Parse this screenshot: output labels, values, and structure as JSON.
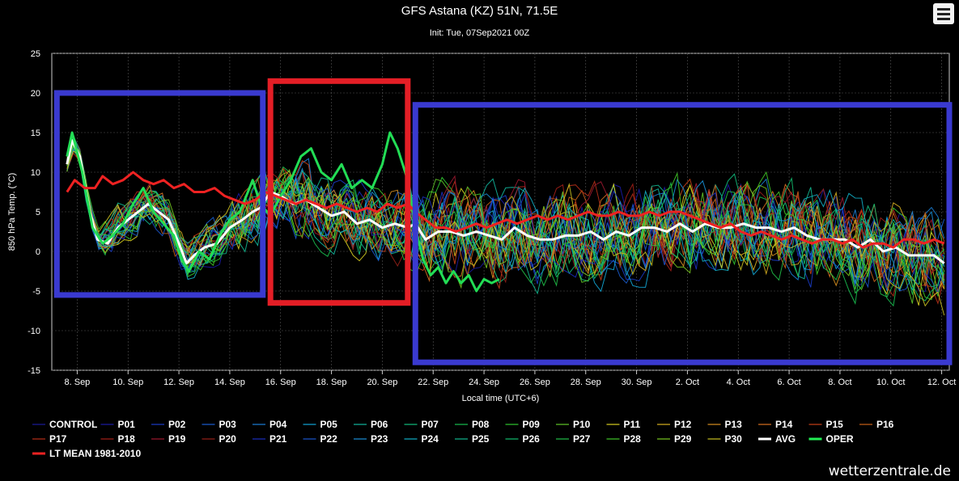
{
  "header": {
    "title": "GFS Astana (KZ) 51N, 71.5E",
    "subtitle": "Init: Tue, 07Sep2021 00Z"
  },
  "credit": "wetterzentrale.de",
  "colors": {
    "avg": "#ffffff",
    "oper": "#22dd55",
    "lt_mean": "#ee2222",
    "box_blue": "#3a3ad0",
    "box_red": "#e41e26"
  },
  "chart_data": {
    "type": "line",
    "title": "GFS Astana (KZ) 51N, 71.5E",
    "subtitle": "Init: Tue, 07Sep2021 00Z",
    "xlabel": "Local time (UTC+6)",
    "ylabel": "850 hPa Temp. (°C)",
    "ylim": [
      -15,
      25
    ],
    "yticks": [
      25,
      20,
      15,
      10,
      5,
      0,
      -5,
      -10,
      -15
    ],
    "xlim_days": "7 Sep – 12 Oct",
    "xticks": [
      "8. Sep",
      "10. Sep",
      "12. Sep",
      "14. Sep",
      "16. Sep",
      "18. Sep",
      "20. Sep",
      "22. Sep",
      "24. Sep",
      "26. Sep",
      "28. Sep",
      "30. Sep",
      "2. Oct",
      "4. Oct",
      "6. Oct",
      "8. Oct",
      "10. Oct",
      "12. Oct"
    ],
    "grid": true,
    "legend_position": "bottom",
    "series": [
      {
        "name": "AVG",
        "color": "#ffffff",
        "points": [
          [
            0.6,
            11
          ],
          [
            0.8,
            14
          ],
          [
            1.1,
            12
          ],
          [
            1.5,
            5
          ],
          [
            1.8,
            1.5
          ],
          [
            2.2,
            1
          ],
          [
            2.6,
            3
          ],
          [
            3.0,
            4
          ],
          [
            3.4,
            5
          ],
          [
            3.8,
            6
          ],
          [
            4.2,
            5
          ],
          [
            4.6,
            4
          ],
          [
            5.0,
            1
          ],
          [
            5.3,
            -1.5
          ],
          [
            5.6,
            -0.5
          ],
          [
            6.0,
            0.5
          ],
          [
            6.5,
            1
          ],
          [
            7.0,
            3
          ],
          [
            7.5,
            4
          ],
          [
            7.9,
            5
          ],
          [
            8.2,
            5.5
          ],
          [
            8.6,
            7.5
          ],
          [
            9.0,
            7
          ],
          [
            9.5,
            6
          ],
          [
            10.0,
            6.5
          ],
          [
            10.5,
            5.5
          ],
          [
            11.0,
            4.5
          ],
          [
            11.5,
            5
          ],
          [
            12.0,
            3.5
          ],
          [
            12.5,
            4
          ],
          [
            13.0,
            3
          ],
          [
            13.5,
            3.5
          ],
          [
            14.0,
            3
          ],
          [
            14.3,
            3.5
          ],
          [
            14.7,
            1.5
          ],
          [
            15.2,
            2.5
          ],
          [
            15.7,
            2.5
          ],
          [
            16.2,
            2
          ],
          [
            16.7,
            2.5
          ],
          [
            17.2,
            2
          ],
          [
            17.7,
            1.5
          ],
          [
            18.2,
            3
          ],
          [
            18.7,
            2
          ],
          [
            19.2,
            1.5
          ],
          [
            19.7,
            1.5
          ],
          [
            20.2,
            2
          ],
          [
            20.7,
            2
          ],
          [
            21.2,
            2.5
          ],
          [
            21.7,
            1.5
          ],
          [
            22.2,
            2.5
          ],
          [
            22.7,
            2
          ],
          [
            23.2,
            3
          ],
          [
            23.7,
            3
          ],
          [
            24.2,
            2.5
          ],
          [
            24.7,
            3.5
          ],
          [
            25.2,
            2.5
          ],
          [
            25.7,
            3.5
          ],
          [
            26.2,
            3
          ],
          [
            26.7,
            3
          ],
          [
            27.2,
            3.5
          ],
          [
            27.7,
            3
          ],
          [
            28.2,
            3
          ],
          [
            28.7,
            2.5
          ],
          [
            29.2,
            3
          ],
          [
            29.7,
            2
          ],
          [
            30.2,
            1.5
          ],
          [
            30.7,
            1.5
          ],
          [
            31.2,
            1.5
          ],
          [
            31.7,
            0.5
          ],
          [
            32.2,
            1.5
          ],
          [
            32.7,
            0
          ],
          [
            33.2,
            0.5
          ],
          [
            33.7,
            -0.5
          ],
          [
            34.2,
            -0.5
          ],
          [
            34.7,
            -0.5
          ],
          [
            35.1,
            -1.5
          ]
        ]
      },
      {
        "name": "OPER",
        "color": "#22dd55",
        "points": [
          [
            0.6,
            12
          ],
          [
            0.8,
            15
          ],
          [
            1.2,
            10
          ],
          [
            1.6,
            3
          ],
          [
            2.0,
            1
          ],
          [
            2.4,
            2
          ],
          [
            2.8,
            3.5
          ],
          [
            3.2,
            6
          ],
          [
            3.6,
            8
          ],
          [
            4.0,
            5
          ],
          [
            4.4,
            3.5
          ],
          [
            4.8,
            2
          ],
          [
            5.1,
            -1
          ],
          [
            5.4,
            -2.5
          ],
          [
            5.8,
            0
          ],
          [
            6.2,
            -1
          ],
          [
            6.6,
            2
          ],
          [
            7.0,
            4
          ],
          [
            7.4,
            5
          ],
          [
            7.9,
            9
          ],
          [
            8.2,
            6
          ],
          [
            8.6,
            4.5
          ],
          [
            9.0,
            7
          ],
          [
            9.4,
            9
          ],
          [
            9.8,
            12
          ],
          [
            10.2,
            13
          ],
          [
            10.6,
            10
          ],
          [
            11.0,
            9
          ],
          [
            11.4,
            11
          ],
          [
            11.8,
            8
          ],
          [
            12.2,
            9
          ],
          [
            12.6,
            8
          ],
          [
            13.0,
            11
          ],
          [
            13.3,
            15
          ],
          [
            13.6,
            13
          ],
          [
            14.0,
            9
          ],
          [
            14.3,
            3
          ],
          [
            14.6,
            -1
          ],
          [
            14.9,
            -3
          ],
          [
            15.2,
            -2
          ],
          [
            15.5,
            -4
          ],
          [
            15.8,
            -2.5
          ],
          [
            16.1,
            -4
          ],
          [
            16.4,
            -3
          ],
          [
            16.7,
            -5
          ],
          [
            17.0,
            -3.5
          ],
          [
            17.3,
            -4
          ],
          [
            17.6,
            -3.5
          ]
        ]
      },
      {
        "name": "LT MEAN 1981-2010",
        "color": "#ee2222",
        "points": [
          [
            0.6,
            7.5
          ],
          [
            0.9,
            9
          ],
          [
            1.3,
            8
          ],
          [
            1.7,
            8
          ],
          [
            2.0,
            9.5
          ],
          [
            2.4,
            8.5
          ],
          [
            2.8,
            9
          ],
          [
            3.2,
            10
          ],
          [
            3.6,
            9
          ],
          [
            4.0,
            8.5
          ],
          [
            4.4,
            9
          ],
          [
            4.8,
            8
          ],
          [
            5.2,
            8.5
          ],
          [
            5.6,
            7.5
          ],
          [
            6.0,
            7.5
          ],
          [
            6.4,
            8
          ],
          [
            6.8,
            7
          ],
          [
            7.2,
            6.5
          ],
          [
            7.6,
            6
          ],
          [
            8.0,
            6.5
          ],
          [
            8.4,
            7.5
          ],
          [
            8.8,
            7
          ],
          [
            9.2,
            6.5
          ],
          [
            9.6,
            6
          ],
          [
            10.0,
            6.5
          ],
          [
            10.4,
            6
          ],
          [
            10.8,
            5.5
          ],
          [
            11.2,
            6
          ],
          [
            11.6,
            5.5
          ],
          [
            12.0,
            5
          ],
          [
            12.4,
            5.5
          ],
          [
            12.8,
            5
          ],
          [
            13.2,
            6
          ],
          [
            13.6,
            5.5
          ],
          [
            14.0,
            6
          ],
          [
            14.3,
            5
          ],
          [
            14.7,
            4
          ],
          [
            15.1,
            3
          ],
          [
            15.5,
            3
          ],
          [
            15.9,
            2.5
          ],
          [
            16.3,
            3
          ],
          [
            16.7,
            3.5
          ],
          [
            17.1,
            3
          ],
          [
            17.5,
            3.5
          ],
          [
            17.9,
            4
          ],
          [
            18.3,
            3.5
          ],
          [
            18.7,
            4
          ],
          [
            19.1,
            4.5
          ],
          [
            19.5,
            4
          ],
          [
            19.9,
            4.5
          ],
          [
            20.3,
            4
          ],
          [
            20.7,
            4.5
          ],
          [
            21.1,
            5
          ],
          [
            21.5,
            4.5
          ],
          [
            21.9,
            4.5
          ],
          [
            22.3,
            5
          ],
          [
            22.7,
            4.5
          ],
          [
            23.1,
            4.5
          ],
          [
            23.5,
            5
          ],
          [
            23.9,
            4.5
          ],
          [
            24.3,
            5
          ],
          [
            24.7,
            5
          ],
          [
            25.1,
            4.5
          ],
          [
            25.5,
            4
          ],
          [
            25.9,
            3.5
          ],
          [
            26.3,
            3
          ],
          [
            26.7,
            3.5
          ],
          [
            27.1,
            2.5
          ],
          [
            27.5,
            2
          ],
          [
            27.9,
            2.5
          ],
          [
            28.3,
            2
          ],
          [
            28.7,
            1.5
          ],
          [
            29.1,
            2
          ],
          [
            29.5,
            1.5
          ],
          [
            29.9,
            1
          ],
          [
            30.3,
            1.5
          ],
          [
            30.7,
            1.5
          ],
          [
            31.1,
            1
          ],
          [
            31.5,
            1.5
          ],
          [
            31.9,
            0.5
          ],
          [
            32.3,
            1
          ],
          [
            32.7,
            1
          ],
          [
            33.1,
            0.5
          ],
          [
            33.5,
            1.5
          ],
          [
            33.9,
            1.5
          ],
          [
            34.3,
            1
          ],
          [
            34.7,
            1.5
          ],
          [
            35.1,
            1
          ]
        ]
      }
    ],
    "ensemble_members": [
      "CONTROL",
      "P01",
      "P02",
      "P03",
      "P04",
      "P05",
      "P06",
      "P07",
      "P08",
      "P09",
      "P10",
      "P11",
      "P12",
      "P13",
      "P14",
      "P15",
      "P16",
      "P17",
      "P18",
      "P19",
      "P20",
      "P21",
      "P22",
      "P23",
      "P24",
      "P25",
      "P26",
      "P27",
      "P28",
      "P29",
      "P30"
    ],
    "ensemble_envelope_note": "31 members spread roughly ±5–10 °C around AVG; spaghetti style",
    "highlight_boxes": [
      {
        "color": "blue",
        "x_range_days": [
          0.2,
          8.3
        ],
        "y_range": [
          -5.5,
          20
        ]
      },
      {
        "color": "red",
        "x_range_days": [
          8.6,
          14.0
        ],
        "y_range": [
          -6.5,
          21.5
        ]
      },
      {
        "color": "blue",
        "x_range_days": [
          14.3,
          35.3
        ],
        "y_range": [
          -14,
          18.5
        ]
      }
    ]
  },
  "legend": {
    "items": [
      {
        "label": "CONTROL",
        "color": "#1a1a9e"
      },
      {
        "label": "P01",
        "color": "#1a1aa8"
      },
      {
        "label": "P02",
        "color": "#1a3cc8"
      },
      {
        "label": "P03",
        "color": "#1a5fd4"
      },
      {
        "label": "P04",
        "color": "#1a7fd8"
      },
      {
        "label": "P05",
        "color": "#12a8d8"
      },
      {
        "label": "P06",
        "color": "#12b8a0"
      },
      {
        "label": "P07",
        "color": "#12c080"
      },
      {
        "label": "P08",
        "color": "#18c050"
      },
      {
        "label": "P09",
        "color": "#30c830"
      },
      {
        "label": "P10",
        "color": "#60c828"
      },
      {
        "label": "P11",
        "color": "#d8d020"
      },
      {
        "label": "P12",
        "color": "#d8b020"
      },
      {
        "label": "P13",
        "color": "#d89020"
      },
      {
        "label": "P14",
        "color": "#d87020"
      },
      {
        "label": "P15",
        "color": "#c84018"
      },
      {
        "label": "P16",
        "color": "#c86018"
      },
      {
        "label": "P17",
        "color": "#b83018"
      },
      {
        "label": "P18",
        "color": "#a82018"
      },
      {
        "label": "P19",
        "color": "#a01830"
      },
      {
        "label": "P20",
        "color": "#982018"
      },
      {
        "label": "P21",
        "color": "#1a30c0"
      },
      {
        "label": "P22",
        "color": "#1a58d0"
      },
      {
        "label": "P23",
        "color": "#1a90d8"
      },
      {
        "label": "P24",
        "color": "#12b0c8"
      },
      {
        "label": "P25",
        "color": "#12b890"
      },
      {
        "label": "P26",
        "color": "#12c070"
      },
      {
        "label": "P27",
        "color": "#20c048"
      },
      {
        "label": "P28",
        "color": "#40c828"
      },
      {
        "label": "P29",
        "color": "#78c820"
      },
      {
        "label": "P30",
        "color": "#c8c020"
      },
      {
        "label": "AVG",
        "color": "#ffffff"
      },
      {
        "label": "OPER",
        "color": "#22ee55"
      },
      {
        "label": "LT MEAN 1981-2010",
        "color": "#ee2222"
      }
    ]
  }
}
